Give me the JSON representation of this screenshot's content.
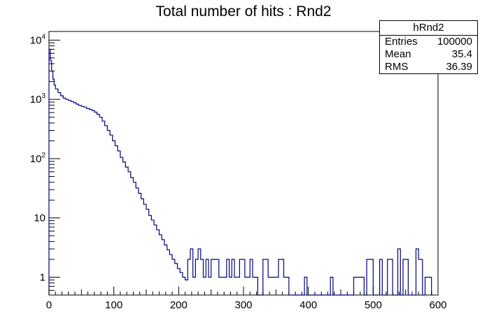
{
  "chart_data": {
    "type": "histogram",
    "title": "Total number of hits : Rnd2",
    "xlabel": "",
    "ylabel": "",
    "xlim": [
      0,
      600
    ],
    "ylim": [
      0.5,
      14000
    ],
    "log_y": true,
    "grid": false,
    "line_color": "#000080",
    "x_ticks": [
      {
        "value": 0,
        "label": "0"
      },
      {
        "value": 100,
        "label": "100"
      },
      {
        "value": 200,
        "label": "200"
      },
      {
        "value": 300,
        "label": "300"
      },
      {
        "value": 400,
        "label": "400"
      },
      {
        "value": 500,
        "label": "500"
      },
      {
        "value": 600,
        "label": "600"
      }
    ],
    "y_ticks": [
      {
        "value": 1,
        "base": "1",
        "exp": ""
      },
      {
        "value": 10,
        "base": "10",
        "exp": ""
      },
      {
        "value": 100,
        "base": "10",
        "exp": "2"
      },
      {
        "value": 1000,
        "base": "10",
        "exp": "3"
      },
      {
        "value": 10000,
        "base": "10",
        "exp": "4"
      }
    ],
    "series": [
      {
        "x": [
          0,
          2,
          4,
          6,
          8,
          10,
          14,
          18,
          22,
          26,
          30,
          34,
          38,
          42,
          46,
          50,
          54,
          58,
          62,
          66,
          70,
          74,
          78,
          82,
          86,
          90,
          94,
          98,
          102,
          106,
          110,
          114,
          118,
          122,
          126,
          130,
          134,
          138,
          142,
          146,
          150,
          154,
          158,
          162,
          166,
          170,
          174,
          178,
          182,
          186,
          190,
          194,
          198,
          202,
          206,
          210,
          214,
          218,
          222,
          226,
          230,
          234,
          238,
          242,
          246,
          250,
          254,
          258,
          262,
          266,
          270,
          274,
          278,
          282,
          286,
          290,
          294,
          298,
          302,
          306,
          310,
          314,
          318,
          322,
          330,
          338,
          346,
          354,
          362,
          370,
          374,
          378,
          394,
          398,
          434,
          438,
          448,
          470,
          486,
          490,
          500,
          510,
          514,
          522,
          530,
          538,
          542,
          546,
          554,
          560,
          566,
          570,
          576,
          580,
          590
        ],
        "y": [
          7000,
          4500,
          3000,
          2200,
          1750,
          1500,
          1300,
          1150,
          1050,
          1000,
          960,
          920,
          880,
          830,
          790,
          760,
          740,
          700,
          680,
          650,
          610,
          560,
          500,
          430,
          360,
          300,
          250,
          200,
          165,
          135,
          105,
          88,
          72,
          60,
          48,
          40,
          32,
          26,
          21,
          17,
          14,
          11,
          9.2,
          7.6,
          6.3,
          5.2,
          4.3,
          3.5,
          2.9,
          2.4,
          2.0,
          1.7,
          1.4,
          1.2,
          1.0,
          0.9,
          2,
          3,
          1,
          2,
          3,
          2,
          1,
          2,
          1,
          2,
          2,
          2,
          1,
          1,
          1,
          2,
          1,
          2,
          1,
          1,
          2,
          2,
          1,
          1,
          2,
          1,
          1,
          0.5,
          2,
          1,
          1,
          2,
          1,
          0.5,
          0.5,
          0.5,
          1,
          0.5,
          1,
          0.5,
          0.5,
          1,
          0.5,
          2,
          0.5,
          2,
          0.5,
          2,
          0.5,
          3,
          0.5,
          2,
          0.5,
          0.5,
          3,
          2,
          0.5,
          1,
          0.5
        ]
      }
    ]
  },
  "stats_box": {
    "name": "hRnd2",
    "entries_label": "Entries",
    "entries_value": "100000",
    "mean_label": "Mean",
    "mean_value": "35.4",
    "rms_label": "RMS",
    "rms_value": "36.39"
  }
}
